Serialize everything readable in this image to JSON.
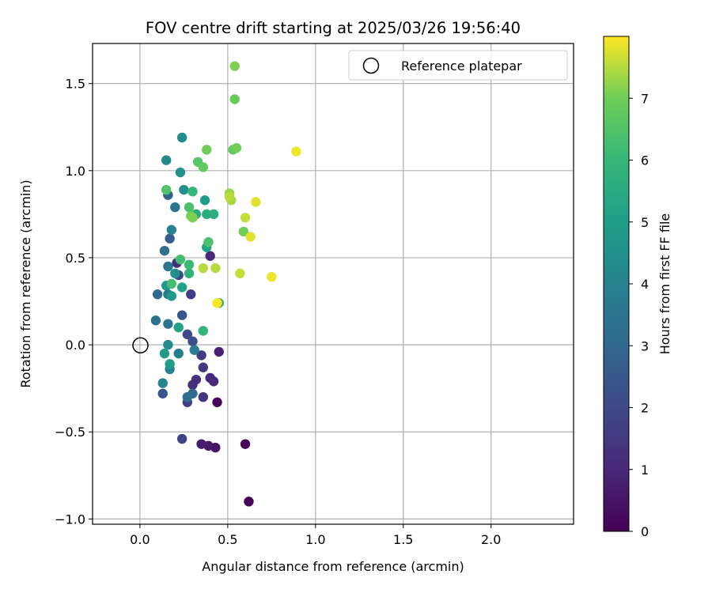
{
  "chart_data": {
    "type": "scatter",
    "title": "FOV centre drift starting at 2025/03/26 19:56:40",
    "xlabel": "Angular distance from reference (arcmin)",
    "ylabel": "Rotation from reference (arcmin)",
    "xlim": [
      -0.27,
      2.47
    ],
    "ylim": [
      -1.03,
      1.73
    ],
    "xticks": [
      0.0,
      0.5,
      1.0,
      1.5,
      2.0
    ],
    "xtick_labels": [
      "0.0",
      "0.5",
      "1.0",
      "1.5",
      "2.0"
    ],
    "yticks": [
      -1.0,
      -0.5,
      0.0,
      0.5,
      1.0,
      1.5
    ],
    "ytick_labels": [
      "−1.0",
      "−0.5",
      "0.0",
      "0.5",
      "1.0",
      "1.5"
    ],
    "grid": true,
    "legend": {
      "location": "upper-right",
      "entries": [
        "Reference platepar"
      ]
    },
    "reference": {
      "x": 0.0,
      "y": 0.0
    },
    "colorbar": {
      "label": "Hours from first FF file",
      "range": [
        0,
        8
      ],
      "ticks": [
        0,
        1,
        2,
        3,
        4,
        5,
        6,
        7
      ],
      "tick_labels": [
        "0",
        "1",
        "2",
        "3",
        "4",
        "5",
        "6",
        "7"
      ],
      "colormap": "viridis"
    },
    "points": [
      {
        "x": 0.62,
        "y": -0.9,
        "c": 0.05
      },
      {
        "x": 0.6,
        "y": -0.57,
        "c": 0.1
      },
      {
        "x": 0.44,
        "y": -0.33,
        "c": 0.15
      },
      {
        "x": 0.43,
        "y": -0.59,
        "c": 0.5
      },
      {
        "x": 0.39,
        "y": -0.58,
        "c": 0.6
      },
      {
        "x": 0.35,
        "y": -0.57,
        "c": 0.7
      },
      {
        "x": 0.45,
        "y": -0.04,
        "c": 0.8
      },
      {
        "x": 0.4,
        "y": -0.19,
        "c": 1.0
      },
      {
        "x": 0.42,
        "y": -0.21,
        "c": 1.1
      },
      {
        "x": 0.32,
        "y": -0.2,
        "c": 1.2
      },
      {
        "x": 0.3,
        "y": -0.23,
        "c": 1.3
      },
      {
        "x": 0.36,
        "y": -0.3,
        "c": 1.4
      },
      {
        "x": 0.36,
        "y": -0.13,
        "c": 1.5
      },
      {
        "x": 0.35,
        "y": -0.06,
        "c": 1.6
      },
      {
        "x": 0.27,
        "y": -0.33,
        "c": 1.7
      },
      {
        "x": 0.24,
        "y": -0.54,
        "c": 1.8
      },
      {
        "x": 0.4,
        "y": 0.51,
        "c": 1.1
      },
      {
        "x": 0.29,
        "y": 0.29,
        "c": 1.6
      },
      {
        "x": 0.27,
        "y": 0.06,
        "c": 2.0
      },
      {
        "x": 0.3,
        "y": 0.02,
        "c": 2.2
      },
      {
        "x": 0.13,
        "y": -0.28,
        "c": 2.3
      },
      {
        "x": 0.24,
        "y": 0.17,
        "c": 2.4
      },
      {
        "x": 0.21,
        "y": 0.47,
        "c": 1.2
      },
      {
        "x": 0.22,
        "y": 0.4,
        "c": 2.0
      },
      {
        "x": 0.17,
        "y": 0.61,
        "c": 2.6
      },
      {
        "x": 0.16,
        "y": 0.86,
        "c": 2.8
      },
      {
        "x": 0.3,
        "y": -0.28,
        "c": 3.0
      },
      {
        "x": 0.27,
        "y": -0.3,
        "c": 3.2
      },
      {
        "x": 0.1,
        "y": 0.29,
        "c": 3.0
      },
      {
        "x": 0.14,
        "y": 0.54,
        "c": 3.3
      },
      {
        "x": 0.09,
        "y": 0.14,
        "c": 3.4
      },
      {
        "x": 0.16,
        "y": 0.12,
        "c": 3.5
      },
      {
        "x": 0.16,
        "y": 0.45,
        "c": 3.6
      },
      {
        "x": 0.2,
        "y": 0.79,
        "c": 3.5
      },
      {
        "x": 0.16,
        "y": 0.29,
        "c": 3.7
      },
      {
        "x": 0.31,
        "y": -0.03,
        "c": 3.8
      },
      {
        "x": 0.22,
        "y": -0.05,
        "c": 3.9
      },
      {
        "x": 0.17,
        "y": -0.14,
        "c": 4.0
      },
      {
        "x": 0.13,
        "y": -0.22,
        "c": 4.1
      },
      {
        "x": 0.15,
        "y": 1.06,
        "c": 4.2
      },
      {
        "x": 0.16,
        "y": 0.0,
        "c": 4.3
      },
      {
        "x": 0.24,
        "y": 1.19,
        "c": 4.4
      },
      {
        "x": 0.18,
        "y": 0.66,
        "c": 4.0
      },
      {
        "x": 0.25,
        "y": 0.89,
        "c": 4.5
      },
      {
        "x": 0.23,
        "y": 0.99,
        "c": 4.6
      },
      {
        "x": 0.15,
        "y": 0.34,
        "c": 4.7
      },
      {
        "x": 0.18,
        "y": 0.28,
        "c": 4.8
      },
      {
        "x": 0.2,
        "y": 0.41,
        "c": 4.5
      },
      {
        "x": 0.14,
        "y": -0.05,
        "c": 4.9
      },
      {
        "x": 0.17,
        "y": -0.11,
        "c": 5.0
      },
      {
        "x": 0.24,
        "y": 0.33,
        "c": 5.1
      },
      {
        "x": 0.22,
        "y": 0.1,
        "c": 5.2
      },
      {
        "x": 0.37,
        "y": 0.83,
        "c": 5.0
      },
      {
        "x": 0.38,
        "y": 0.56,
        "c": 5.2
      },
      {
        "x": 0.38,
        "y": 0.75,
        "c": 5.6
      },
      {
        "x": 0.32,
        "y": 0.75,
        "c": 5.6
      },
      {
        "x": 0.28,
        "y": 0.41,
        "c": 5.8
      },
      {
        "x": 0.36,
        "y": 0.08,
        "c": 5.9
      },
      {
        "x": 0.42,
        "y": 0.75,
        "c": 5.7
      },
      {
        "x": 0.3,
        "y": 0.88,
        "c": 6.0
      },
      {
        "x": 0.28,
        "y": 0.46,
        "c": 6.1
      },
      {
        "x": 0.45,
        "y": 0.24,
        "c": 5.4
      },
      {
        "x": 0.23,
        "y": 0.49,
        "c": 6.3
      },
      {
        "x": 0.18,
        "y": 0.35,
        "c": 6.3
      },
      {
        "x": 0.15,
        "y": 0.89,
        "c": 6.5
      },
      {
        "x": 0.28,
        "y": 0.79,
        "c": 6.4
      },
      {
        "x": 0.39,
        "y": 0.59,
        "c": 6.4
      },
      {
        "x": 0.33,
        "y": 1.05,
        "c": 6.6
      },
      {
        "x": 0.36,
        "y": 1.02,
        "c": 6.8
      },
      {
        "x": 0.53,
        "y": 1.12,
        "c": 6.8
      },
      {
        "x": 0.38,
        "y": 1.12,
        "c": 7.0
      },
      {
        "x": 0.55,
        "y": 1.13,
        "c": 7.0
      },
      {
        "x": 0.54,
        "y": 1.41,
        "c": 6.9
      },
      {
        "x": 0.54,
        "y": 1.6,
        "c": 7.1
      },
      {
        "x": 0.29,
        "y": 0.74,
        "c": 7.0
      },
      {
        "x": 0.3,
        "y": 0.73,
        "c": 7.1
      },
      {
        "x": 0.59,
        "y": 0.65,
        "c": 7.0
      },
      {
        "x": 0.51,
        "y": 0.87,
        "c": 7.3
      },
      {
        "x": 0.52,
        "y": 0.83,
        "c": 7.4
      },
      {
        "x": 0.51,
        "y": 0.85,
        "c": 7.5
      },
      {
        "x": 0.36,
        "y": 0.44,
        "c": 7.5
      },
      {
        "x": 0.43,
        "y": 0.44,
        "c": 7.5
      },
      {
        "x": 0.57,
        "y": 0.41,
        "c": 7.6
      },
      {
        "x": 0.6,
        "y": 0.73,
        "c": 7.6
      },
      {
        "x": 0.66,
        "y": 0.82,
        "c": 7.8
      },
      {
        "x": 0.63,
        "y": 0.62,
        "c": 7.8
      },
      {
        "x": 0.89,
        "y": 1.11,
        "c": 7.9
      },
      {
        "x": 0.75,
        "y": 0.39,
        "c": 7.9
      },
      {
        "x": 0.44,
        "y": 0.24,
        "c": 7.95
      }
    ]
  }
}
